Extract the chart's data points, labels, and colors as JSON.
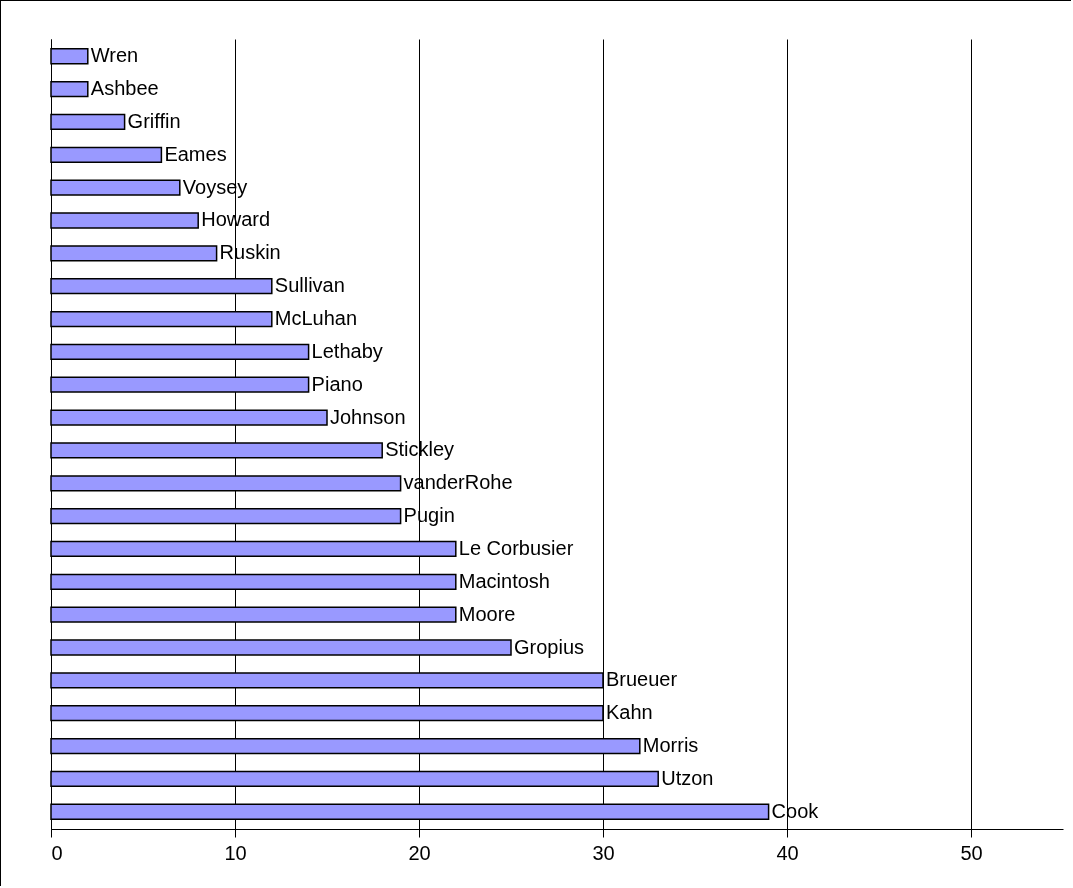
{
  "chart_data": {
    "type": "bar",
    "orientation": "horizontal",
    "categories": [
      "Wren",
      "Ashbee",
      "Griffin",
      "Eames",
      "Voysey",
      "Howard",
      "Ruskin",
      "Sullivan",
      "McLuhan",
      "Lethaby",
      "Piano",
      "Johnson",
      "Stickley",
      "vanderRohe",
      "Pugin",
      "Le Corbusier",
      "Macintosh",
      "Moore",
      "Gropius",
      "Brueuer",
      "Kahn",
      "Morris",
      "Utzon",
      "Cook"
    ],
    "values": [
      2,
      2,
      4,
      6,
      7,
      8,
      9,
      12,
      12,
      14,
      14,
      15,
      18,
      19,
      19,
      22,
      22,
      22,
      25,
      30,
      30,
      32,
      33,
      39
    ],
    "color": "#9999ff",
    "xlim": [
      0,
      55
    ],
    "xticks": [
      0,
      10,
      20,
      30,
      40,
      50
    ],
    "grid": "x",
    "tick_labels": "x"
  }
}
